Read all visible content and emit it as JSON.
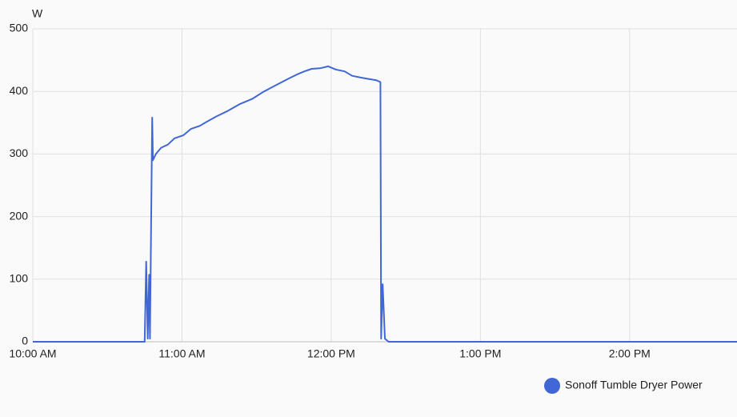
{
  "chart_data": {
    "type": "line",
    "y_axis_label": "W",
    "x": [
      10,
      10.75,
      10.76,
      10.77,
      10.78,
      10.785,
      10.8,
      10.805,
      10.825,
      10.86,
      10.905,
      10.95,
      11.01,
      11.06,
      11.12,
      11.17,
      11.23,
      11.3,
      11.39,
      11.47,
      11.55,
      11.63,
      11.71,
      11.77,
      11.82,
      11.87,
      11.925,
      11.98,
      12.03,
      12.09,
      12.14,
      12.2,
      12.25,
      12.3,
      12.33,
      12.335,
      12.345,
      12.36,
      12.385,
      14.72
    ],
    "series": [
      {
        "name": "Sonoff Tumble Dryer Power",
        "color": "#4166d5",
        "values": [
          0,
          0,
          128,
          5,
          107,
          5,
          358,
          290,
          300,
          310,
          315,
          325,
          330,
          340,
          345,
          352,
          360,
          368,
          380,
          388,
          400,
          410,
          420,
          427,
          432,
          436,
          437,
          440,
          435,
          432,
          425,
          422,
          420,
          418,
          415,
          5,
          92,
          5,
          0,
          0
        ]
      }
    ],
    "xlim": [
      10,
      14.72
    ],
    "xticks": [
      {
        "value": 10,
        "label": "10:00 AM"
      },
      {
        "value": 11,
        "label": "11:00 AM"
      },
      {
        "value": 12,
        "label": "12:00 PM"
      },
      {
        "value": 13,
        "label": "1:00 PM"
      },
      {
        "value": 14,
        "label": "2:00 PM"
      }
    ],
    "ylim": [
      0,
      500
    ],
    "yticks": [
      0,
      100,
      200,
      300,
      400,
      500
    ],
    "grid": true
  }
}
